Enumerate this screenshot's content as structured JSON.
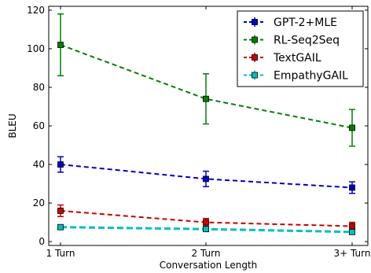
{
  "chart_data": {
    "type": "line",
    "title": "",
    "xlabel": "Conversation Length",
    "ylabel": "BLEU",
    "categories": [
      "1 Turn",
      "2 Turn",
      "3+ Turn"
    ],
    "ylim": [
      -2,
      122
    ],
    "yticks": [
      0,
      20,
      40,
      60,
      80,
      100,
      120
    ],
    "grid": false,
    "legend_position": "top-right",
    "series": [
      {
        "name": "GPT-2+MLE",
        "color": "#0000cc",
        "values": [
          40,
          32.5,
          28
        ],
        "errors": [
          4,
          4,
          3
        ]
      },
      {
        "name": "RL-Seq2Seq",
        "color": "#008000",
        "values": [
          102,
          74,
          59
        ],
        "errors": [
          16,
          13,
          9.5
        ]
      },
      {
        "name": "TextGAIL",
        "color": "#cc0000",
        "values": [
          16,
          10,
          8
        ],
        "errors": [
          3,
          2,
          2
        ]
      },
      {
        "name": "EmpathyGAIL",
        "color": "#00bfbf",
        "values": [
          7.5,
          6.5,
          5
        ],
        "errors": [
          1,
          1,
          1
        ]
      }
    ]
  }
}
